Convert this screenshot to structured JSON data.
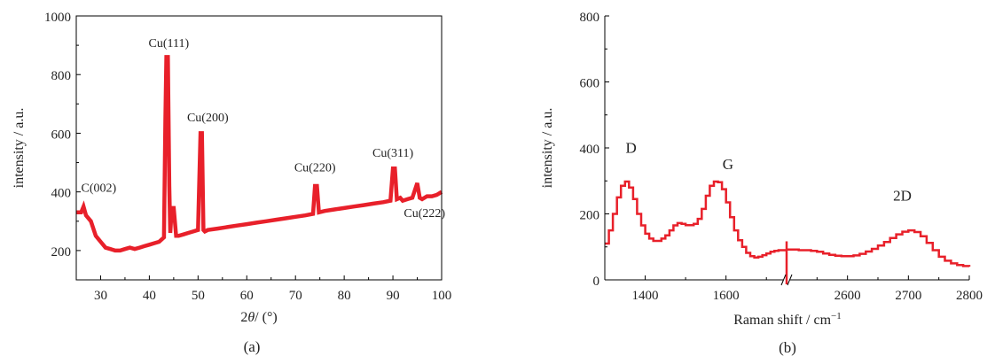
{
  "chart_data": [
    {
      "type": "line",
      "caption": "(a)",
      "xlabel_prefix": "2",
      "xlabel_var": "θ",
      "xlabel_suffix": "/ (°)",
      "ylabel": "intensity / a.u.",
      "xlim": [
        25,
        100
      ],
      "ylim": [
        100,
        1000
      ],
      "xticks": [
        30,
        40,
        50,
        60,
        70,
        80,
        90,
        100
      ],
      "yticks": [
        200,
        400,
        600,
        800,
        1000
      ],
      "color": "#e8202a",
      "series": [
        {
          "x": [
            25,
            26,
            26.5,
            27,
            28,
            29,
            30,
            31,
            32,
            33,
            34,
            35,
            36,
            37,
            38,
            39,
            40,
            41,
            42,
            43,
            43.3,
            43.5,
            43.8,
            44.1,
            44.3,
            44.6,
            45,
            45.5,
            46,
            47,
            48,
            49,
            50,
            50.3,
            50.5,
            50.8,
            51.1,
            51.4,
            52,
            54,
            56,
            58,
            60,
            62,
            64,
            66,
            68,
            70,
            72,
            73.6,
            74,
            74.4,
            74.8,
            76,
            78,
            80,
            82,
            84,
            86,
            88,
            89.5,
            90,
            90.4,
            90.8,
            91.5,
            92,
            93,
            94,
            95,
            95.5,
            96,
            97,
            98,
            99,
            100
          ],
          "y": [
            330,
            330,
            350,
            320,
            300,
            250,
            230,
            210,
            205,
            200,
            200,
            205,
            210,
            205,
            210,
            215,
            220,
            225,
            230,
            245,
            650,
            860,
            860,
            420,
            260,
            345,
            345,
            250,
            250,
            255,
            260,
            265,
            270,
            470,
            600,
            600,
            270,
            265,
            270,
            275,
            280,
            285,
            290,
            295,
            300,
            305,
            310,
            315,
            320,
            325,
            420,
            420,
            330,
            335,
            340,
            345,
            350,
            355,
            360,
            365,
            370,
            480,
            480,
            375,
            380,
            370,
            375,
            380,
            430,
            380,
            375,
            385,
            385,
            390,
            400
          ]
        }
      ],
      "annotations": [
        {
          "text": "C(002)",
          "x": 26,
          "y": 400
        },
        {
          "text": "Cu(111)",
          "x": 44,
          "y": 895
        },
        {
          "text": "Cu(200)",
          "x": 52,
          "y": 640
        },
        {
          "text": "Cu(220)",
          "x": 74,
          "y": 470
        },
        {
          "text": "Cu(311)",
          "x": 90,
          "y": 520
        },
        {
          "text": "Cu(222)",
          "x": 96.5,
          "y": 315
        }
      ]
    },
    {
      "type": "line",
      "caption": "(b)",
      "xlabel": "Raman shift / cm",
      "xlabel_sup": "−1",
      "ylabel": "intensity / a.u.",
      "ylim": [
        0,
        800
      ],
      "yticks": [
        0,
        200,
        400,
        600,
        800
      ],
      "xtick_labels": [
        "1400",
        "1600",
        "2600",
        "2700",
        "2800"
      ],
      "break_between": [
        "1750",
        "2500"
      ],
      "color": "#e8202a",
      "series": [
        {
          "segment": "low",
          "xlim": [
            1300,
            1750
          ],
          "x": [
            1300,
            1310,
            1320,
            1330,
            1340,
            1350,
            1360,
            1370,
            1380,
            1390,
            1400,
            1410,
            1420,
            1430,
            1440,
            1450,
            1460,
            1470,
            1480,
            1490,
            1500,
            1510,
            1520,
            1530,
            1540,
            1550,
            1560,
            1570,
            1580,
            1590,
            1600,
            1610,
            1620,
            1630,
            1640,
            1650,
            1660,
            1670,
            1680,
            1690,
            1700,
            1710,
            1720,
            1730,
            1740,
            1750
          ],
          "y": [
            110,
            150,
            200,
            250,
            285,
            298,
            280,
            245,
            200,
            165,
            140,
            125,
            118,
            118,
            125,
            135,
            150,
            165,
            172,
            170,
            166,
            166,
            170,
            185,
            215,
            255,
            285,
            298,
            296,
            275,
            235,
            190,
            150,
            120,
            100,
            82,
            72,
            68,
            70,
            75,
            80,
            85,
            88,
            90,
            90,
            90
          ]
        },
        {
          "segment": "high",
          "xlim": [
            2500,
            2800
          ],
          "x": [
            2500,
            2510,
            2520,
            2530,
            2540,
            2550,
            2560,
            2570,
            2580,
            2590,
            2600,
            2610,
            2620,
            2630,
            2640,
            2650,
            2660,
            2670,
            2680,
            2690,
            2700,
            2710,
            2720,
            2730,
            2740,
            2750,
            2760,
            2770,
            2780,
            2790,
            2800
          ],
          "y": [
            92,
            92,
            90,
            90,
            88,
            85,
            80,
            76,
            73,
            72,
            72,
            74,
            79,
            86,
            94,
            104,
            115,
            127,
            138,
            146,
            150,
            145,
            132,
            112,
            90,
            70,
            58,
            50,
            45,
            42,
            40
          ]
        }
      ],
      "annotations": [
        {
          "text": "D",
          "x": 1365,
          "y": 385
        },
        {
          "text": "G",
          "x": 1605,
          "y": 335
        },
        {
          "text": "2D",
          "x": 2690,
          "y": 240
        }
      ]
    }
  ]
}
